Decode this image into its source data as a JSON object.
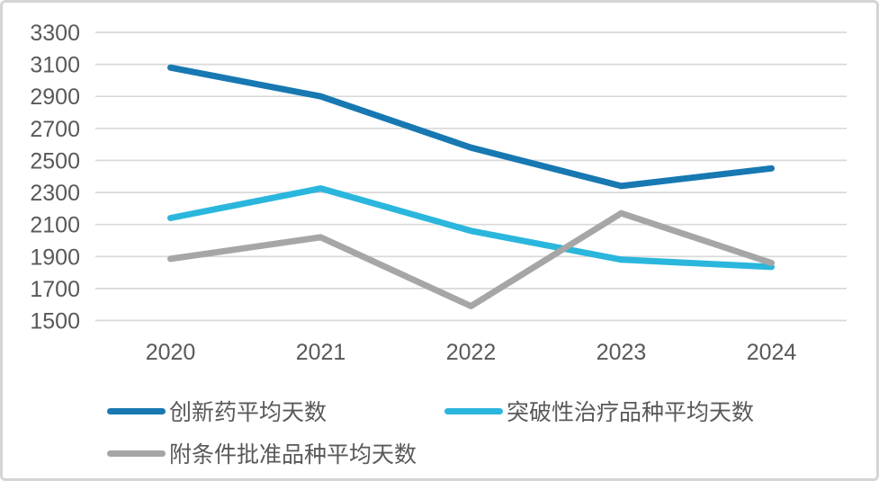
{
  "chart_data": {
    "type": "line",
    "title": "",
    "categories": [
      "2020",
      "2021",
      "2022",
      "2023",
      "2024"
    ],
    "series": [
      {
        "name": "创新药平均天数",
        "color": "#1778b2",
        "values": [
          3080,
          2900,
          2580,
          2340,
          2450
        ]
      },
      {
        "name": "突破性治疗品种平均天数",
        "color": "#2bb6dd",
        "values": [
          2140,
          2325,
          2060,
          1880,
          1835
        ]
      },
      {
        "name": "附条件批准品种平均天数",
        "color": "#a6a6a6",
        "values": [
          1885,
          2020,
          1590,
          2170,
          1860
        ]
      }
    ],
    "xlabel": "",
    "ylabel": "",
    "ylim": [
      1500,
      3300
    ],
    "yticks": [
      3300,
      3100,
      2900,
      2700,
      2500,
      2300,
      2100,
      1900,
      1700,
      1500
    ],
    "grid": true,
    "gridline_color": "#d9d9d9",
    "axis_label_color": "#595959",
    "legend_position": "bottom-left",
    "legend_text_color": "#595959",
    "background_color": "#ffffff",
    "frame_border_color": "#d5d5d5"
  }
}
